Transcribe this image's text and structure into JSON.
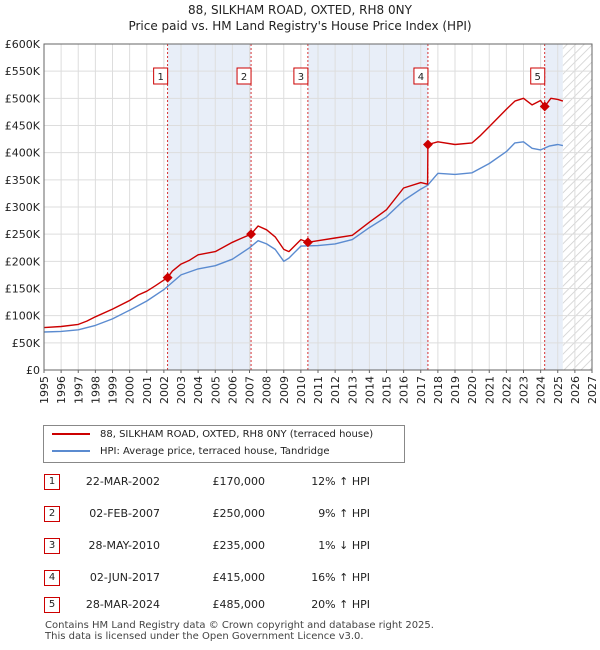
{
  "title": {
    "line1": "88, SILKHAM ROAD, OXTED, RH8 0NY",
    "line2": "Price paid vs. HM Land Registry's House Price Index (HPI)"
  },
  "legend": {
    "property_label": "88, SILKHAM ROAD, OXTED, RH8 0NY (terraced house)",
    "hpi_label": "HPI: Average price, terraced house, Tandridge"
  },
  "colors": {
    "property": "#cc0000",
    "hpi": "#5b8bd0",
    "shade": "#e8eef8",
    "future_hatch": "#cccccc"
  },
  "sales": [
    {
      "num": "1",
      "date": "22-MAR-2002",
      "price": "£170,000",
      "hpi": "12% ↑ HPI"
    },
    {
      "num": "2",
      "date": "02-FEB-2007",
      "price": "£250,000",
      "hpi": "9% ↑ HPI"
    },
    {
      "num": "3",
      "date": "28-MAY-2010",
      "price": "£235,000",
      "hpi": "1% ↓ HPI"
    },
    {
      "num": "4",
      "date": "02-JUN-2017",
      "price": "£415,000",
      "hpi": "16% ↑ HPI"
    },
    {
      "num": "5",
      "date": "28-MAR-2024",
      "price": "£485,000",
      "hpi": "20% ↑ HPI"
    }
  ],
  "footer": {
    "line1": "Contains HM Land Registry data © Crown copyright and database right 2025.",
    "line2": "This data is licensed under the Open Government Licence v3.0."
  },
  "chart_data": {
    "type": "line",
    "title": "88, SILKHAM ROAD, OXTED, RH8 0NY — Price paid vs. HM Land Registry's House Price Index (HPI)",
    "xlabel": "",
    "ylabel": "",
    "xlim": [
      1995,
      2027
    ],
    "ylim": [
      0,
      600000
    ],
    "x_ticks": [
      1995,
      1996,
      1997,
      1998,
      1999,
      2000,
      2001,
      2002,
      2003,
      2004,
      2005,
      2006,
      2007,
      2008,
      2009,
      2010,
      2011,
      2012,
      2013,
      2014,
      2015,
      2016,
      2017,
      2018,
      2019,
      2020,
      2021,
      2022,
      2023,
      2024,
      2025,
      2026,
      2027
    ],
    "y_ticks": [
      0,
      50000,
      100000,
      150000,
      200000,
      250000,
      300000,
      350000,
      400000,
      450000,
      500000,
      550000,
      600000
    ],
    "y_tick_labels": [
      "£0",
      "£50K",
      "£100K",
      "£150K",
      "£200K",
      "£250K",
      "£300K",
      "£350K",
      "£400K",
      "£450K",
      "£500K",
      "£550K",
      "£600K"
    ],
    "grid": true,
    "shaded_ranges": [
      [
        2002.22,
        2007.09
      ],
      [
        2010.41,
        2017.42
      ],
      [
        2024.24,
        2025.3
      ]
    ],
    "future_from": 2025.3,
    "series": [
      {
        "name": "88, SILKHAM ROAD, OXTED, RH8 0NY (terraced house)",
        "x": [
          1995.0,
          1996.0,
          1997.0,
          1997.5,
          1998.0,
          1999.0,
          2000.0,
          2000.5,
          2001.0,
          2001.5,
          2002.22,
          2002.5,
          2003.0,
          2003.5,
          2004.0,
          2005.0,
          2006.0,
          2006.5,
          2007.09,
          2007.5,
          2008.0,
          2008.5,
          2009.0,
          2009.3,
          2010.0,
          2010.41,
          2011.0,
          2012.0,
          2013.0,
          2014.0,
          2015.0,
          2016.0,
          2017.0,
          2017.4,
          2017.42,
          2018.0,
          2019.0,
          2020.0,
          2020.5,
          2021.0,
          2022.0,
          2022.5,
          2023.0,
          2023.5,
          2024.0,
          2024.24,
          2024.6,
          2025.0,
          2025.3
        ],
        "values": [
          78000,
          80000,
          84000,
          90000,
          98000,
          112000,
          128000,
          138000,
          145000,
          155000,
          170000,
          182000,
          195000,
          202000,
          212000,
          218000,
          235000,
          242000,
          250000,
          265000,
          258000,
          245000,
          222000,
          218000,
          240000,
          235000,
          238000,
          243000,
          248000,
          272000,
          295000,
          335000,
          345000,
          342000,
          415000,
          420000,
          415000,
          418000,
          432000,
          448000,
          480000,
          495000,
          500000,
          488000,
          496000,
          485000,
          500000,
          498000,
          495000
        ]
      },
      {
        "name": "HPI: Average price, terraced house, Tandridge",
        "x": [
          1995.0,
          1996.0,
          1997.0,
          1998.0,
          1999.0,
          2000.0,
          2001.0,
          2002.0,
          2003.0,
          2004.0,
          2005.0,
          2006.0,
          2007.0,
          2007.5,
          2008.0,
          2008.5,
          2009.0,
          2009.3,
          2010.0,
          2011.0,
          2012.0,
          2013.0,
          2014.0,
          2015.0,
          2016.0,
          2017.0,
          2017.4,
          2018.0,
          2019.0,
          2020.0,
          2021.0,
          2022.0,
          2022.5,
          2023.0,
          2023.5,
          2024.0,
          2024.5,
          2025.0,
          2025.3
        ],
        "values": [
          70000,
          71000,
          74000,
          82000,
          94000,
          110000,
          127000,
          148000,
          175000,
          186000,
          192000,
          204000,
          225000,
          238000,
          232000,
          222000,
          200000,
          206000,
          228000,
          229000,
          232000,
          240000,
          262000,
          282000,
          312000,
          333000,
          340000,
          362000,
          360000,
          363000,
          380000,
          402000,
          418000,
          420000,
          408000,
          405000,
          412000,
          415000,
          413000
        ]
      }
    ],
    "annotations": [
      {
        "label": "1",
        "x": 2002.22,
        "y": 170000
      },
      {
        "label": "2",
        "x": 2007.09,
        "y": 250000
      },
      {
        "label": "3",
        "x": 2010.41,
        "y": 235000
      },
      {
        "label": "4",
        "x": 2017.42,
        "y": 415000
      },
      {
        "label": "5",
        "x": 2024.24,
        "y": 485000
      }
    ]
  }
}
